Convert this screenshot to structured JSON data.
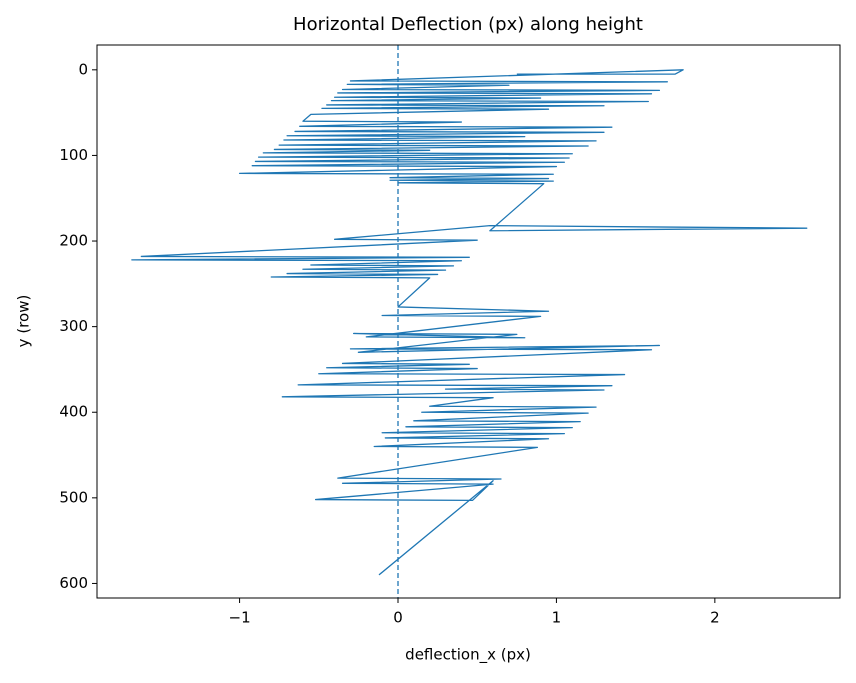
{
  "chart_data": {
    "type": "line",
    "title": "Horizontal Deflection (px) along height",
    "x_label": "deflection_x (px)",
    "y_label": "y (row)",
    "color": "#1f77b4",
    "x": [
      0.75,
      1.75,
      1.8,
      -0.3,
      1.7,
      -0.32,
      0.7,
      -0.35,
      1.65,
      -0.38,
      1.6,
      -0.4,
      0.9,
      -0.42,
      1.58,
      -0.45,
      1.3,
      -0.48,
      0.95,
      -0.55,
      -0.6,
      0.4,
      -0.62,
      1.35,
      -0.65,
      1.3,
      -0.7,
      0.8,
      -0.72,
      1.25,
      -0.75,
      1.2,
      -0.78,
      0.2,
      -0.85,
      1.1,
      -0.88,
      1.08,
      -0.9,
      1.05,
      -0.92,
      1.0,
      -1.0,
      0.98,
      -0.05,
      0.95,
      -0.05,
      0.98,
      0.0,
      0.92,
      0.58,
      2.58,
      0.58,
      -0.4,
      0.5,
      -1.62,
      0.45,
      -1.68,
      0.4,
      -0.55,
      0.35,
      -0.6,
      0.3,
      -0.7,
      0.25,
      -0.8,
      0.2,
      0.0,
      0.95,
      -0.1,
      0.9,
      -0.2,
      0.8,
      -0.28,
      0.75,
      -0.25,
      1.65,
      -0.3,
      1.6,
      -0.35,
      0.45,
      -0.45,
      0.5,
      -0.5,
      1.43,
      -0.63,
      1.35,
      0.3,
      1.3,
      -0.73,
      0.6,
      0.2,
      1.25,
      0.15,
      1.2,
      0.1,
      1.15,
      0.05,
      1.1,
      -0.1,
      1.05,
      -0.08,
      0.95,
      -0.15,
      0.88,
      -0.38,
      0.65,
      -0.35,
      0.6,
      -0.52,
      0.47,
      0.6,
      -0.12
    ],
    "values": [
      5,
      5,
      0,
      13,
      14,
      17,
      18,
      23,
      24,
      27,
      28,
      32,
      33,
      36,
      37,
      41,
      42,
      45,
      46,
      52,
      60,
      61,
      66,
      67,
      72,
      73,
      77,
      78,
      82,
      83,
      88,
      89,
      93,
      94,
      97,
      98,
      102,
      103,
      107,
      108,
      112,
      113,
      121,
      122,
      126,
      127,
      129,
      130,
      132,
      133,
      188,
      185,
      182,
      198,
      199,
      218,
      219,
      222,
      223,
      228,
      229,
      233,
      234,
      238,
      239,
      242,
      243,
      277,
      282,
      287,
      288,
      312,
      313,
      308,
      309,
      330,
      322,
      326,
      327,
      343,
      344,
      348,
      349,
      355,
      356,
      368,
      369,
      373,
      374,
      382,
      383,
      393,
      394,
      400,
      401,
      410,
      411,
      417,
      418,
      424,
      425,
      430,
      431,
      440,
      441,
      477,
      478,
      483,
      484,
      502,
      503,
      480,
      590
    ],
    "xlim": [
      -1.9,
      2.79
    ],
    "xticks": [
      {
        "value": -1,
        "label": "−1"
      },
      0,
      1,
      2
    ],
    "ylim": [
      -29,
      617
    ],
    "y_inverted": true,
    "yticks": [
      0,
      100,
      200,
      300,
      400,
      500,
      600
    ],
    "reference_line": {
      "x": 0,
      "style": "dashed"
    }
  }
}
